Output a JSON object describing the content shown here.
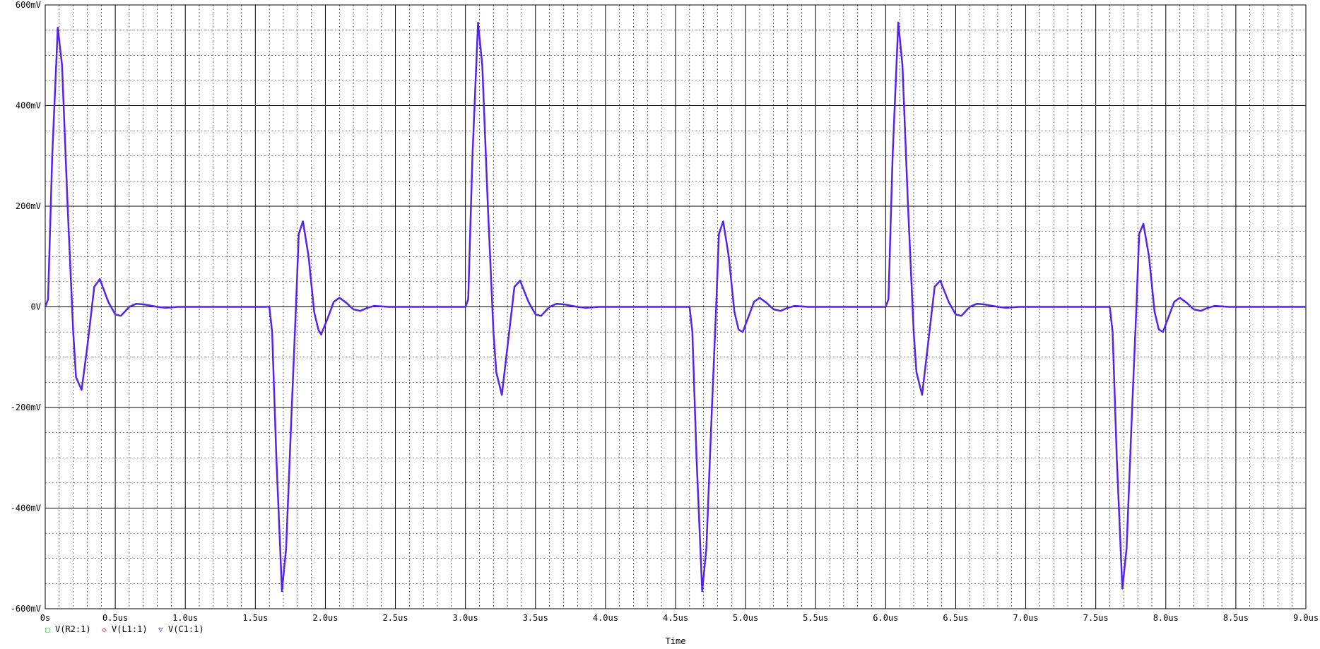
{
  "chart_data": {
    "type": "line",
    "xlabel": "Time",
    "ylabel": "",
    "xlim": [
      0,
      9.0
    ],
    "ylim": [
      -600,
      600
    ],
    "x_unit": "us",
    "y_unit": "mV",
    "x_ticks": [
      "0s",
      "0.5us",
      "1.0us",
      "1.5us",
      "2.0us",
      "2.5us",
      "3.0us",
      "3.5us",
      "4.0us",
      "4.5us",
      "5.0us",
      "5.5us",
      "6.0us",
      "6.5us",
      "7.0us",
      "7.5us",
      "8.0us",
      "8.5us",
      "9.0us"
    ],
    "y_ticks": [
      "600mV",
      "400mV",
      "200mV",
      "0V",
      "-200mV",
      "-400mV",
      "-600mV"
    ],
    "grid": true,
    "legend_position": "bottom-left",
    "legend": [
      {
        "name": "V(R2:1)",
        "marker": "□",
        "color": "#22cc22"
      },
      {
        "name": "V(L1:1)",
        "marker": "◇",
        "color": "#dd2222"
      },
      {
        "name": "V(C1:1)",
        "marker": "▽",
        "color": "#4422ee"
      }
    ],
    "series": [
      {
        "name": "V(C1:1)",
        "color": "#5522ee",
        "points": [
          [
            0,
            0
          ],
          [
            0.02,
            15
          ],
          [
            0.05,
            300
          ],
          [
            0.09,
            555
          ],
          [
            0.12,
            480
          ],
          [
            0.16,
            200
          ],
          [
            0.2,
            -50
          ],
          [
            0.22,
            -140
          ],
          [
            0.26,
            -165
          ],
          [
            0.3,
            -80
          ],
          [
            0.35,
            40
          ],
          [
            0.39,
            55
          ],
          [
            0.45,
            10
          ],
          [
            0.5,
            -15
          ],
          [
            0.54,
            -18
          ],
          [
            0.6,
            0
          ],
          [
            0.65,
            6
          ],
          [
            0.7,
            5
          ],
          [
            0.8,
            0
          ],
          [
            0.86,
            -2
          ],
          [
            0.95,
            0
          ],
          [
            1.0,
            0
          ],
          [
            1.6,
            0
          ],
          [
            1.62,
            -50
          ],
          [
            1.65,
            -300
          ],
          [
            1.69,
            -565
          ],
          [
            1.72,
            -480
          ],
          [
            1.76,
            -200
          ],
          [
            1.79,
            0
          ],
          [
            1.81,
            145
          ],
          [
            1.84,
            170
          ],
          [
            1.88,
            100
          ],
          [
            1.92,
            -10
          ],
          [
            1.95,
            -45
          ],
          [
            1.97,
            -55
          ],
          [
            2.02,
            -20
          ],
          [
            2.06,
            10
          ],
          [
            2.1,
            18
          ],
          [
            2.15,
            8
          ],
          [
            2.2,
            -5
          ],
          [
            2.25,
            -8
          ],
          [
            2.3,
            -2
          ],
          [
            2.35,
            2
          ],
          [
            2.45,
            0
          ],
          [
            3.0,
            0
          ],
          [
            3.02,
            15
          ],
          [
            3.05,
            300
          ],
          [
            3.09,
            565
          ],
          [
            3.12,
            480
          ],
          [
            3.16,
            200
          ],
          [
            3.2,
            -50
          ],
          [
            3.22,
            -130
          ],
          [
            3.26,
            -175
          ],
          [
            3.3,
            -80
          ],
          [
            3.35,
            40
          ],
          [
            3.39,
            52
          ],
          [
            3.45,
            10
          ],
          [
            3.5,
            -15
          ],
          [
            3.54,
            -18
          ],
          [
            3.6,
            0
          ],
          [
            3.65,
            6
          ],
          [
            3.7,
            5
          ],
          [
            3.8,
            0
          ],
          [
            3.86,
            -2
          ],
          [
            3.95,
            0
          ],
          [
            4.6,
            0
          ],
          [
            4.62,
            -50
          ],
          [
            4.65,
            -300
          ],
          [
            4.69,
            -565
          ],
          [
            4.72,
            -480
          ],
          [
            4.76,
            -200
          ],
          [
            4.79,
            0
          ],
          [
            4.81,
            145
          ],
          [
            4.84,
            170
          ],
          [
            4.88,
            100
          ],
          [
            4.92,
            -10
          ],
          [
            4.95,
            -45
          ],
          [
            4.98,
            -50
          ],
          [
            5.02,
            -20
          ],
          [
            5.06,
            10
          ],
          [
            5.1,
            18
          ],
          [
            5.15,
            8
          ],
          [
            5.2,
            -5
          ],
          [
            5.25,
            -8
          ],
          [
            5.3,
            -2
          ],
          [
            5.35,
            2
          ],
          [
            5.45,
            0
          ],
          [
            6.0,
            0
          ],
          [
            6.02,
            15
          ],
          [
            6.05,
            300
          ],
          [
            6.09,
            565
          ],
          [
            6.12,
            480
          ],
          [
            6.16,
            200
          ],
          [
            6.2,
            -50
          ],
          [
            6.22,
            -130
          ],
          [
            6.26,
            -175
          ],
          [
            6.3,
            -80
          ],
          [
            6.35,
            40
          ],
          [
            6.39,
            52
          ],
          [
            6.45,
            10
          ],
          [
            6.5,
            -15
          ],
          [
            6.54,
            -18
          ],
          [
            6.6,
            0
          ],
          [
            6.65,
            6
          ],
          [
            6.7,
            5
          ],
          [
            6.8,
            0
          ],
          [
            6.86,
            -2
          ],
          [
            6.95,
            0
          ],
          [
            7.6,
            0
          ],
          [
            7.62,
            -50
          ],
          [
            7.65,
            -300
          ],
          [
            7.69,
            -560
          ],
          [
            7.72,
            -480
          ],
          [
            7.76,
            -200
          ],
          [
            7.79,
            0
          ],
          [
            7.81,
            145
          ],
          [
            7.84,
            165
          ],
          [
            7.88,
            100
          ],
          [
            7.92,
            -10
          ],
          [
            7.95,
            -45
          ],
          [
            7.98,
            -50
          ],
          [
            8.02,
            -20
          ],
          [
            8.06,
            10
          ],
          [
            8.1,
            18
          ],
          [
            8.15,
            8
          ],
          [
            8.2,
            -5
          ],
          [
            8.25,
            -8
          ],
          [
            8.3,
            -2
          ],
          [
            8.35,
            2
          ],
          [
            8.45,
            0
          ],
          [
            9.0,
            0
          ]
        ]
      }
    ]
  }
}
